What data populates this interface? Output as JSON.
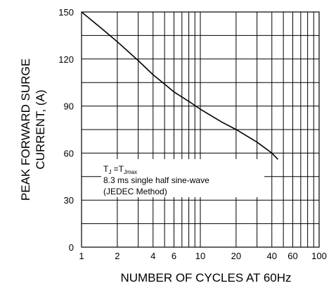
{
  "chart_data": {
    "type": "line",
    "title": "",
    "xlabel": "NUMBER OF CYCLES AT 60Hz",
    "ylabel_lines": [
      "PEAK FORWARD SURGE",
      "CURRENT, (A)"
    ],
    "x_scale": "log",
    "xlim": [
      1,
      100
    ],
    "ylim": [
      0,
      150
    ],
    "x_ticks": [
      1,
      2,
      4,
      6,
      10,
      20,
      40,
      60,
      100
    ],
    "x_tick_labels": [
      "1",
      "2",
      "4",
      "6",
      "10",
      "20",
      "40",
      "60",
      "100"
    ],
    "y_ticks": [
      0,
      30,
      60,
      90,
      120,
      150
    ],
    "y_tick_labels": [
      "0",
      "30",
      "60",
      "90",
      "120",
      "150"
    ],
    "grid": true,
    "legend": "none",
    "series": [
      {
        "x": [
          1,
          1.5,
          2,
          3,
          4,
          5,
          6,
          8,
          10,
          15,
          20,
          30,
          40,
          45
        ],
        "y": [
          150,
          139,
          131,
          119,
          110,
          104,
          99,
          93,
          88,
          80,
          75,
          67,
          60,
          56
        ]
      }
    ],
    "annotation": {
      "line1_main": "T",
      "line1_sub1": "J",
      "line1_mid": " =T",
      "line1_sub2": "Jmax",
      "line2": "8.3 ms single half sine-wave",
      "line3": "(JEDEC Method)"
    }
  }
}
